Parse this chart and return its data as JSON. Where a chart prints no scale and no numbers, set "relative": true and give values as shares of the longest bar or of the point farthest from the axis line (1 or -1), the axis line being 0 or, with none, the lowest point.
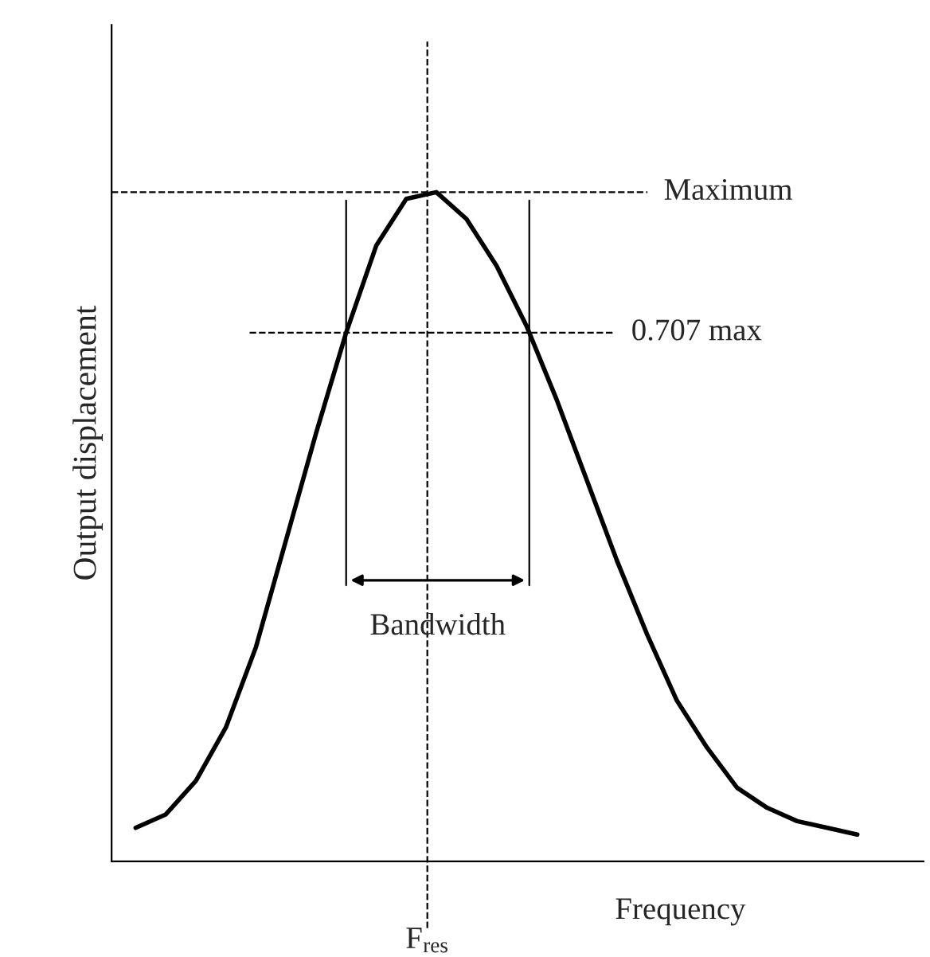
{
  "chart_data": {
    "type": "line",
    "relative": true,
    "xlabel": "Frequency",
    "ylabel": "Output displacement",
    "categories": [
      null,
      null,
      null,
      null,
      null,
      null,
      null,
      null,
      null,
      null,
      null,
      null,
      null,
      null,
      null,
      null,
      null,
      null,
      null,
      null,
      null,
      null,
      null,
      null,
      null
    ],
    "series": [
      {
        "color": "#000000",
        "values": [
          0.05,
          0.07,
          0.12,
          0.2,
          0.32,
          0.48,
          0.64,
          0.79,
          0.92,
          0.99,
          1.0,
          0.96,
          0.89,
          0.8,
          0.69,
          0.57,
          0.45,
          0.34,
          0.24,
          0.17,
          0.11,
          0.08,
          0.06,
          0.05,
          0.04
        ]
      }
    ],
    "ref_lines": [
      {
        "axis": "y",
        "value": 1.0,
        "label": "Maximum",
        "line_style": "dashed"
      },
      {
        "axis": "y",
        "value": 0.79,
        "label": "0.707 max",
        "line_style": "dashed"
      }
    ],
    "annotations": [
      "Bandwidth",
      "F$_{res}$"
    ],
    "marker": "none",
    "line_style": "solid"
  }
}
